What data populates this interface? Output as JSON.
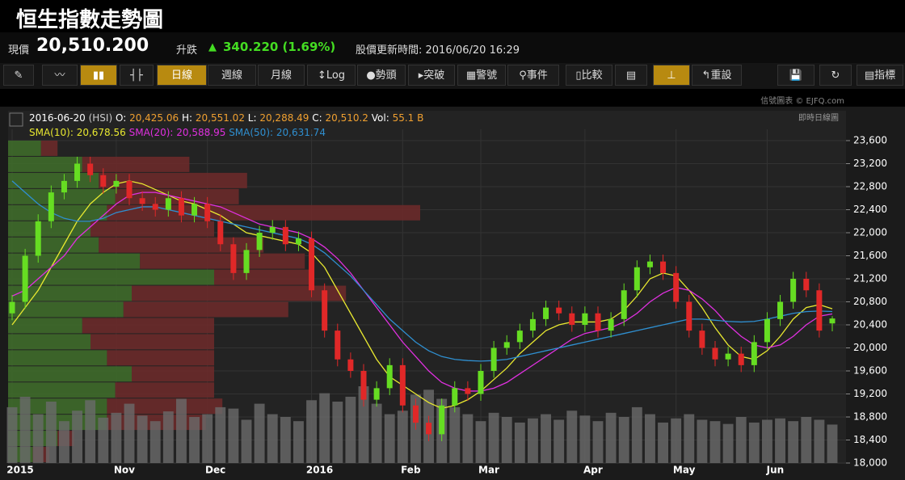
{
  "header": {
    "title": "恒生指數走勢圖",
    "price_label": "現價",
    "price": "20,510.200",
    "change_label": "升跌",
    "change": "340.220 (1.69%)",
    "update_time": "股價更新時間: 2016/06/20 16:29"
  },
  "toolbar": [
    "日線",
    "週線",
    "月線",
    "Log",
    "勢頭",
    "突破",
    "警號",
    "事件",
    "比較",
    "重設",
    "指標"
  ],
  "credit": "信號圖表 © EJFQ.com",
  "chart_mode": "即時日線圖",
  "legend": {
    "date": "2016-06-20",
    "symbol": "(HSI)",
    "o_label": "O:",
    "o": "20,425.06",
    "h_label": "H:",
    "h": "20,551.02",
    "l_label": "L:",
    "l": "20,288.49",
    "c_label": "C:",
    "c": "20,510.2",
    "vol_label": "Vol:",
    "vol": "55.1 B"
  },
  "chart_data": {
    "type": "candlestick",
    "up_color": "#66dd22",
    "down_color": "#e02828",
    "volume_color": "#6a6a6a",
    "categories": [
      "2015",
      null,
      null,
      null,
      null,
      null,
      null,
      null,
      "Nov",
      null,
      null,
      null,
      null,
      null,
      null,
      "Dec",
      null,
      null,
      null,
      null,
      null,
      null,
      null,
      "2016",
      null,
      null,
      null,
      null,
      null,
      null,
      "Feb",
      null,
      null,
      null,
      null,
      null,
      "Mar",
      null,
      null,
      null,
      null,
      null,
      null,
      null,
      "Apr",
      null,
      null,
      null,
      null,
      null,
      null,
      "May",
      null,
      null,
      null,
      null,
      null,
      null,
      "Jun",
      null,
      null,
      null,
      null,
      null
    ],
    "open": [
      20600,
      20800,
      21600,
      22200,
      22700,
      22900,
      23200,
      23000,
      22800,
      22900,
      22600,
      22500,
      22400,
      22600,
      22300,
      22500,
      22200,
      21800,
      21300,
      21700,
      22000,
      22100,
      21800,
      21900,
      21000,
      20300,
      19800,
      19600,
      19100,
      19300,
      19700,
      19000,
      18700,
      18500,
      19000,
      19300,
      19200,
      19600,
      20000,
      20100,
      20300,
      20500,
      20700,
      20600,
      20400,
      20600,
      20300,
      20500,
      21000,
      21400,
      21500,
      21300,
      20800,
      20300,
      20000,
      19800,
      19900,
      19700,
      20100,
      20500,
      20800,
      21200,
      21000,
      20425.06
    ],
    "high": [
      20920,
      21720,
      22320,
      22820,
      23020,
      23320,
      23320,
      23120,
      23020,
      23020,
      22720,
      22620,
      22720,
      22720,
      22620,
      22620,
      22320,
      21920,
      21820,
      22120,
      22220,
      22220,
      22020,
      22020,
      21120,
      20420,
      19920,
      19720,
      19420,
      19820,
      19820,
      19120,
      18820,
      19120,
      19420,
      19420,
      19720,
      20120,
      20220,
      20420,
      20620,
      20820,
      20820,
      20720,
      20720,
      20720,
      20620,
      21120,
      21520,
      21620,
      21620,
      21420,
      20920,
      20420,
      20120,
      20020,
      20020,
      20220,
      20620,
      20920,
      21320,
      21320,
      21120,
      20551.02
    ],
    "low": [
      20480,
      20680,
      21480,
      22080,
      22580,
      22780,
      22880,
      22680,
      22680,
      22480,
      22380,
      22280,
      22280,
      22180,
      22180,
      22080,
      21680,
      21180,
      21180,
      21580,
      21880,
      21680,
      21680,
      20880,
      20180,
      19680,
      19480,
      18980,
      18980,
      19180,
      18880,
      18580,
      18380,
      18380,
      18880,
      19080,
      19080,
      19480,
      19880,
      19980,
      20180,
      20380,
      20480,
      20280,
      20280,
      20180,
      20180,
      20380,
      20880,
      21280,
      21180,
      20680,
      20180,
      19880,
      19680,
      19680,
      19580,
      19580,
      19980,
      20380,
      20680,
      20880,
      20180,
      20288.49
    ],
    "close": [
      20800,
      21600,
      22200,
      22700,
      22900,
      23200,
      23000,
      22800,
      22900,
      22600,
      22500,
      22400,
      22600,
      22300,
      22500,
      22200,
      21800,
      21300,
      21700,
      22000,
      22100,
      21800,
      21900,
      21000,
      20300,
      19800,
      19600,
      19100,
      19300,
      19700,
      19000,
      18700,
      18500,
      19000,
      19300,
      19200,
      19600,
      20000,
      20100,
      20300,
      20500,
      20700,
      20600,
      20400,
      20600,
      20300,
      20500,
      21000,
      21400,
      21500,
      21300,
      20800,
      20300,
      20000,
      19800,
      19900,
      19700,
      20100,
      20500,
      20800,
      21200,
      21000,
      20300,
      20510.2
    ],
    "volume": [
      80,
      95,
      70,
      88,
      60,
      75,
      90,
      65,
      72,
      85,
      68,
      60,
      74,
      92,
      66,
      70,
      80,
      78,
      62,
      85,
      70,
      66,
      60,
      90,
      100,
      88,
      95,
      110,
      85,
      70,
      75,
      98,
      105,
      92,
      80,
      70,
      60,
      72,
      66,
      58,
      64,
      70,
      62,
      75,
      68,
      60,
      72,
      66,
      80,
      70,
      58,
      64,
      70,
      62,
      60,
      56,
      66,
      58,
      62,
      64,
      60,
      66,
      62,
      55.1
    ],
    "series": [
      {
        "name": "SMA(10):",
        "value_label": "20,678.56",
        "color": "#e8e830",
        "values": [
          20400,
          20700,
          21000,
          21400,
          21800,
          22200,
          22500,
          22700,
          22850,
          22900,
          22850,
          22750,
          22650,
          22550,
          22500,
          22400,
          22300,
          22150,
          22000,
          21950,
          21900,
          21850,
          21800,
          21650,
          21400,
          21000,
          20600,
          20200,
          19800,
          19500,
          19350,
          19200,
          19050,
          18950,
          19000,
          19100,
          19250,
          19450,
          19650,
          19900,
          20100,
          20300,
          20400,
          20450,
          20450,
          20450,
          20500,
          20650,
          20900,
          21200,
          21300,
          21250,
          21000,
          20700,
          20350,
          20050,
          19850,
          19800,
          19950,
          20200,
          20500,
          20700,
          20750,
          20678.56
        ]
      },
      {
        "name": "SMA(20):",
        "value_label": "20,588.95",
        "color": "#e030e0",
        "values": [
          20900,
          21000,
          21200,
          21400,
          21600,
          21900,
          22100,
          22300,
          22500,
          22650,
          22700,
          22700,
          22650,
          22600,
          22550,
          22500,
          22450,
          22350,
          22250,
          22150,
          22100,
          22050,
          22000,
          21900,
          21750,
          21550,
          21300,
          21000,
          20700,
          20400,
          20100,
          19850,
          19600,
          19400,
          19300,
          19250,
          19250,
          19300,
          19400,
          19550,
          19700,
          19850,
          20000,
          20150,
          20250,
          20300,
          20350,
          20450,
          20600,
          20800,
          20950,
          21050,
          21000,
          20850,
          20650,
          20400,
          20200,
          20050,
          20000,
          20050,
          20200,
          20400,
          20550,
          20588.95
        ]
      },
      {
        "name": "SMA(50):",
        "value_label": "20,631.74",
        "color": "#2f8fd0",
        "values": [
          22900,
          22700,
          22500,
          22350,
          22250,
          22200,
          22200,
          22250,
          22350,
          22400,
          22450,
          22450,
          22400,
          22350,
          22300,
          22250,
          22200,
          22150,
          22100,
          22050,
          22000,
          21950,
          21900,
          21800,
          21650,
          21450,
          21250,
          21000,
          20750,
          20500,
          20300,
          20100,
          19950,
          19850,
          19800,
          19780,
          19770,
          19780,
          19800,
          19850,
          19900,
          19950,
          20000,
          20050,
          20100,
          20150,
          20200,
          20250,
          20300,
          20350,
          20400,
          20450,
          20500,
          20500,
          20480,
          20460,
          20450,
          20460,
          20500,
          20550,
          20600,
          20630,
          20640,
          20631.74
        ]
      }
    ],
    "volume_profile": {
      "bins": [
        18000,
        18280,
        18560,
        18840,
        19120,
        19400,
        19680,
        19960,
        20240,
        20520,
        20800,
        21080,
        21360,
        21640,
        21920,
        22200,
        22480,
        22760,
        23040,
        23320,
        23600
      ],
      "up": [
        30,
        60,
        120,
        120,
        130,
        150,
        120,
        100,
        90,
        140,
        150,
        250,
        160,
        110,
        100,
        120,
        130,
        110,
        90,
        40
      ],
      "down": [
        20,
        20,
        120,
        140,
        120,
        100,
        130,
        150,
        160,
        200,
        260,
        120,
        200,
        200,
        150,
        380,
        150,
        180,
        130,
        20
      ],
      "up_color": "#3f6e2a",
      "down_color": "#6e2a2a"
    },
    "ylim": [
      18000,
      23600
    ],
    "yticks": [
      {
        "value": 18000,
        "label": "18,000"
      },
      {
        "value": 18400,
        "label": "18,400"
      },
      {
        "value": 18800,
        "label": "18,800"
      },
      {
        "value": 19200,
        "label": "19,200"
      },
      {
        "value": 19600,
        "label": "19,600"
      },
      {
        "value": 20000,
        "label": "20,000"
      },
      {
        "value": 20400,
        "label": "20,400"
      },
      {
        "value": 20800,
        "label": "20,800"
      },
      {
        "value": 21200,
        "label": "21,200"
      },
      {
        "value": 21600,
        "label": "21,600"
      },
      {
        "value": 22000,
        "label": "22,000"
      },
      {
        "value": 22400,
        "label": "22,400"
      },
      {
        "value": 22800,
        "label": "22,800"
      },
      {
        "value": 23200,
        "label": "23,200"
      },
      {
        "value": 23600,
        "label": "23,600"
      }
    ],
    "grid": true
  }
}
